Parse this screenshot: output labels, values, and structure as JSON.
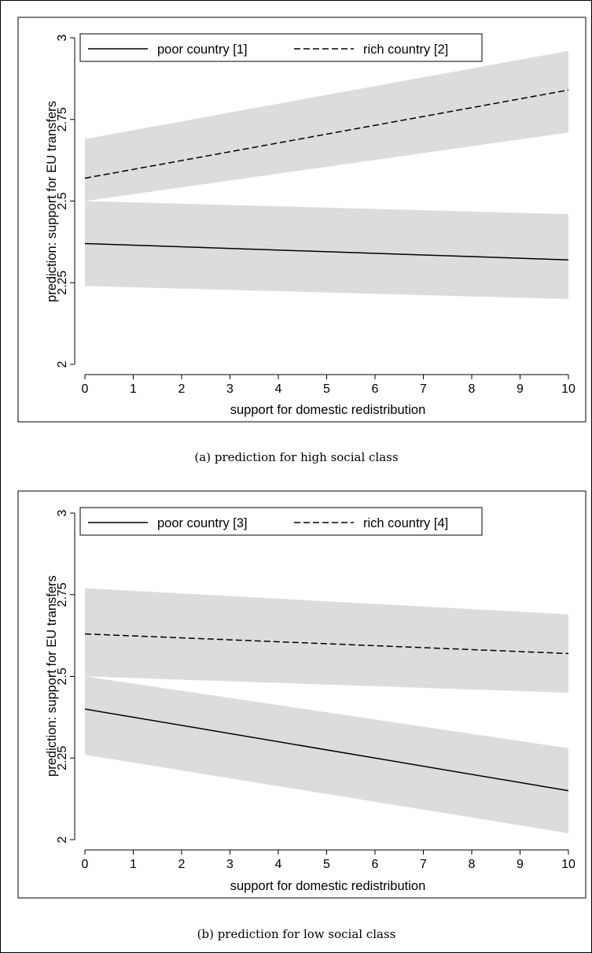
{
  "colors": {
    "band": "#dcdcdc",
    "line": "#000000",
    "frame": "#000000"
  },
  "chart_data": [
    {
      "type": "line",
      "caption": "(a) prediction for high social class",
      "xlabel": "support for domestic redistribution",
      "ylabel": "prediction: support for EU transfers",
      "xlim": [
        0,
        10
      ],
      "ylim": [
        2,
        3
      ],
      "xticks": [
        "0",
        "1",
        "2",
        "3",
        "4",
        "5",
        "6",
        "7",
        "8",
        "9",
        "10"
      ],
      "yticks": [
        "2",
        "2.25",
        "2.5",
        "2.75",
        "3"
      ],
      "grid": false,
      "legend_position": "top",
      "series": [
        {
          "name": "poor country [1]",
          "style": "solid",
          "x": [
            0,
            10
          ],
          "y": [
            2.37,
            2.32
          ],
          "ci_lower": [
            2.24,
            2.2
          ],
          "ci_upper": [
            2.5,
            2.46
          ]
        },
        {
          "name": "rich country [2]",
          "style": "dashed",
          "x": [
            0,
            10
          ],
          "y": [
            2.57,
            2.84
          ],
          "ci_lower": [
            2.5,
            2.71
          ],
          "ci_upper": [
            2.69,
            2.96
          ]
        }
      ]
    },
    {
      "type": "line",
      "caption": "(b) prediction for low social class",
      "xlabel": "support for domestic redistribution",
      "ylabel": "prediction: support for EU transfers",
      "xlim": [
        0,
        10
      ],
      "ylim": [
        2,
        3
      ],
      "xticks": [
        "0",
        "1",
        "2",
        "3",
        "4",
        "5",
        "6",
        "7",
        "8",
        "9",
        "10"
      ],
      "yticks": [
        "2",
        "2.25",
        "2.5",
        "2.75",
        "3"
      ],
      "grid": false,
      "legend_position": "top",
      "series": [
        {
          "name": "poor country [3]",
          "style": "solid",
          "x": [
            0,
            10
          ],
          "y": [
            2.4,
            2.15
          ],
          "ci_lower": [
            2.26,
            2.02
          ],
          "ci_upper": [
            2.5,
            2.28
          ]
        },
        {
          "name": "rich country [4]",
          "style": "dashed",
          "x": [
            0,
            10
          ],
          "y": [
            2.63,
            2.57
          ],
          "ci_lower": [
            2.5,
            2.45
          ],
          "ci_upper": [
            2.77,
            2.69
          ]
        }
      ]
    }
  ]
}
